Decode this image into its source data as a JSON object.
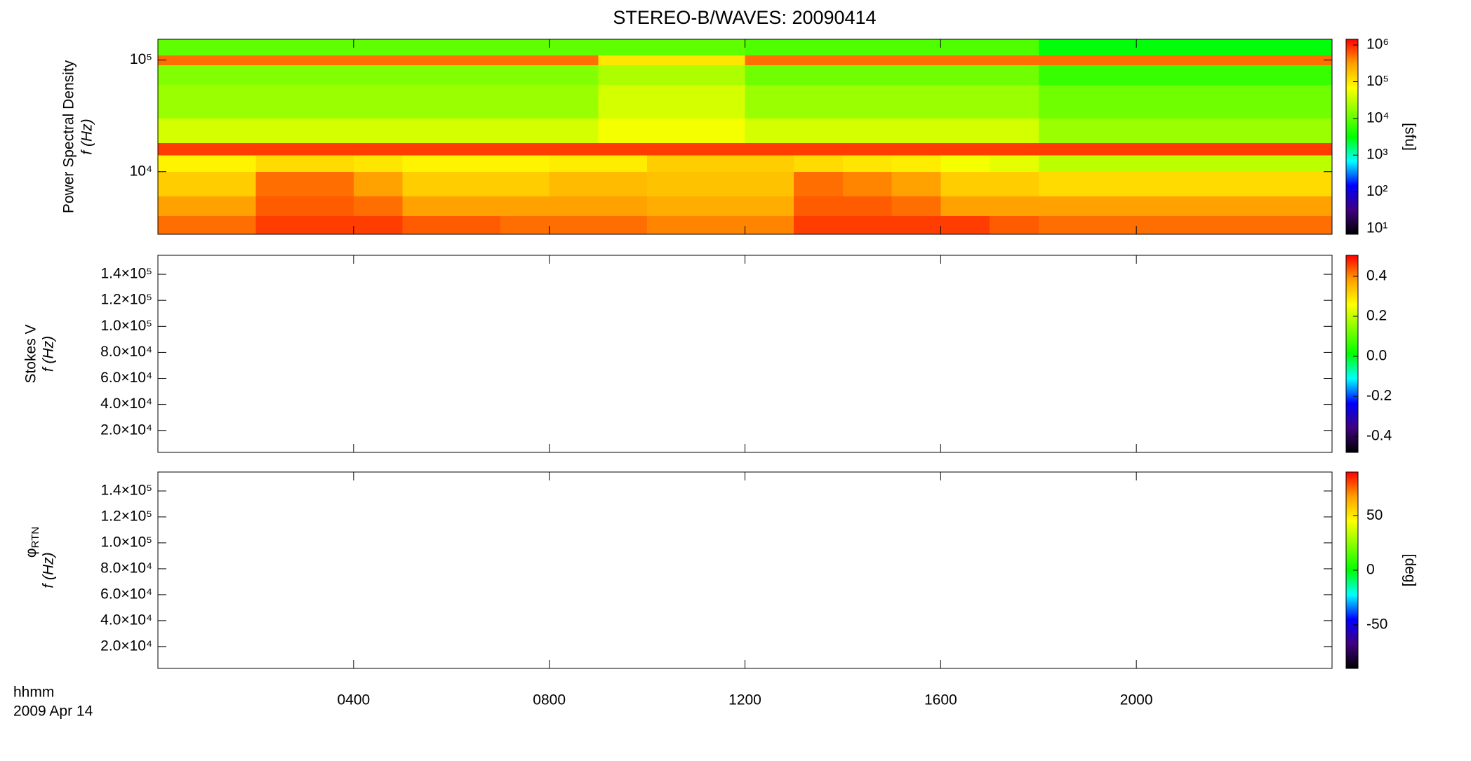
{
  "title": "STEREO-B/WAVES: 20090414",
  "time_label": "hhmm",
  "date_label": "2009 Apr 14",
  "x_axis": {
    "xlim": [
      0,
      24
    ],
    "xticks": [
      {
        "value": 4,
        "label": "0400"
      },
      {
        "value": 8,
        "label": "0800"
      },
      {
        "value": 12,
        "label": "1200"
      },
      {
        "value": 16,
        "label": "1600"
      },
      {
        "value": 20,
        "label": "2000"
      }
    ]
  },
  "colormap": [
    "#000000",
    "#400080",
    "#0000ff",
    "#00ffff",
    "#00ff00",
    "#80ff00",
    "#ffff00",
    "#ffa000",
    "#ff0000"
  ],
  "chart_data": [
    {
      "type": "heatmap",
      "ylabel": "Power Spectral Density",
      "ylabel2": "f (Hz)",
      "ylog": true,
      "ylim": [
        2750,
        153500
      ],
      "yticks": [
        {
          "value": 10000,
          "label": "10⁴"
        },
        {
          "value": 100000,
          "label": "10⁵"
        }
      ],
      "x_edges": [
        0,
        1,
        2,
        3,
        4,
        5,
        6,
        7,
        8,
        9,
        10,
        11,
        12,
        13,
        14,
        15,
        16,
        17,
        18,
        19,
        20,
        21,
        22,
        23,
        24
      ],
      "y_edges": [
        2750,
        4000,
        6000,
        10000,
        14000,
        18000,
        30000,
        60000,
        90000,
        110000,
        153500
      ],
      "values": [
        [
          500000,
          500000,
          800000,
          800000,
          800000,
          600000,
          600000,
          500000,
          500000,
          500000,
          400000,
          400000,
          400000,
          800000,
          800000,
          800000,
          800000,
          600000,
          500000,
          500000,
          500000,
          500000,
          500000,
          500000
        ],
        [
          300000,
          300000,
          600000,
          600000,
          500000,
          300000,
          300000,
          300000,
          300000,
          300000,
          250000,
          250000,
          250000,
          600000,
          600000,
          500000,
          300000,
          300000,
          300000,
          300000,
          300000,
          300000,
          300000,
          300000
        ],
        [
          150000,
          150000,
          500000,
          500000,
          300000,
          150000,
          150000,
          150000,
          200000,
          200000,
          180000,
          180000,
          180000,
          500000,
          400000,
          300000,
          150000,
          150000,
          120000,
          120000,
          120000,
          120000,
          120000,
          120000
        ],
        [
          80000,
          80000,
          120000,
          120000,
          100000,
          80000,
          80000,
          80000,
          90000,
          90000,
          150000,
          150000,
          150000,
          120000,
          100000,
          90000,
          60000,
          50000,
          30000,
          30000,
          30000,
          30000,
          30000,
          30000
        ],
        [
          800000,
          800000,
          800000,
          800000,
          800000,
          800000,
          800000,
          800000,
          800000,
          800000,
          800000,
          800000,
          800000,
          800000,
          800000,
          800000,
          800000,
          800000,
          800000,
          800000,
          800000,
          800000,
          800000,
          800000
        ],
        [
          40000,
          40000,
          40000,
          40000,
          40000,
          40000,
          40000,
          40000,
          40000,
          60000,
          60000,
          60000,
          40000,
          40000,
          40000,
          40000,
          40000,
          40000,
          20000,
          20000,
          20000,
          20000,
          20000,
          20000
        ],
        [
          20000,
          20000,
          20000,
          20000,
          20000,
          20000,
          20000,
          20000,
          20000,
          40000,
          40000,
          40000,
          20000,
          20000,
          20000,
          20000,
          20000,
          20000,
          12000,
          12000,
          12000,
          12000,
          12000,
          12000
        ],
        [
          15000,
          15000,
          15000,
          15000,
          15000,
          15000,
          15000,
          15000,
          15000,
          25000,
          25000,
          25000,
          12000,
          12000,
          12000,
          12000,
          12000,
          12000,
          6000,
          6000,
          6000,
          6000,
          6000,
          6000
        ],
        [
          500000,
          500000,
          500000,
          500000,
          500000,
          500000,
          500000,
          500000,
          500000,
          100000,
          100000,
          100000,
          500000,
          500000,
          500000,
          500000,
          500000,
          500000,
          500000,
          500000,
          500000,
          500000,
          500000,
          500000
        ],
        [
          10000,
          10000,
          10000,
          10000,
          10000,
          10000,
          10000,
          10000,
          10000,
          10000,
          10000,
          10000,
          8000,
          8000,
          8000,
          8000,
          8000,
          8000,
          3000,
          3000,
          3000,
          3000,
          3000,
          3000
        ]
      ],
      "colorbar": {
        "log": true,
        "zlim": [
          7,
          1430000
        ],
        "label": "[sfu]",
        "zticks": [
          {
            "value": 10,
            "label": "10¹"
          },
          {
            "value": 100,
            "label": "10²"
          },
          {
            "value": 1000,
            "label": "10³"
          },
          {
            "value": 10000,
            "label": "10⁴"
          },
          {
            "value": 100000,
            "label": "10⁵"
          },
          {
            "value": 1000000,
            "label": "10⁶"
          }
        ]
      }
    },
    {
      "type": "heatmap",
      "ylabel": "Stokes V",
      "ylabel2": "f (Hz)",
      "ylog": false,
      "ylim": [
        3150,
        154600
      ],
      "yticks": [
        {
          "value": 20000,
          "label": "2.0×10⁴"
        },
        {
          "value": 40000,
          "label": "4.0×10⁴"
        },
        {
          "value": 60000,
          "label": "6.0×10⁴"
        },
        {
          "value": 80000,
          "label": "8.0×10⁴"
        },
        {
          "value": 100000,
          "label": "1.0×10⁵"
        },
        {
          "value": 120000,
          "label": "1.2×10⁵"
        },
        {
          "value": 140000,
          "label": "1.4×10⁵"
        }
      ],
      "colorbar": {
        "log": false,
        "zlim": [
          -0.48,
          0.505
        ],
        "zticks": [
          -0.4,
          -0.2,
          {
            "value": 0,
            "label": "0.0"
          },
          0.2,
          0.4
        ]
      }
    },
    {
      "type": "heatmap",
      "ylabel_symbol": "φ",
      "ylabel_subscript": "RTN",
      "ylabel2": "f (Hz)",
      "ylog": false,
      "ylim": [
        3150,
        154600
      ],
      "yticks": [
        {
          "value": 20000,
          "label": "2.0×10⁴"
        },
        {
          "value": 40000,
          "label": "4.0×10⁴"
        },
        {
          "value": 60000,
          "label": "6.0×10⁴"
        },
        {
          "value": 80000,
          "label": "8.0×10⁴"
        },
        {
          "value": 100000,
          "label": "1.0×10⁵"
        },
        {
          "value": 120000,
          "label": "1.2×10⁵"
        },
        {
          "value": 140000,
          "label": "1.4×10⁵"
        }
      ],
      "colorbar": {
        "log": false,
        "zlim": [
          -90,
          90
        ],
        "label": "[deg]",
        "zticks": [
          -50,
          0,
          50
        ]
      }
    }
  ]
}
